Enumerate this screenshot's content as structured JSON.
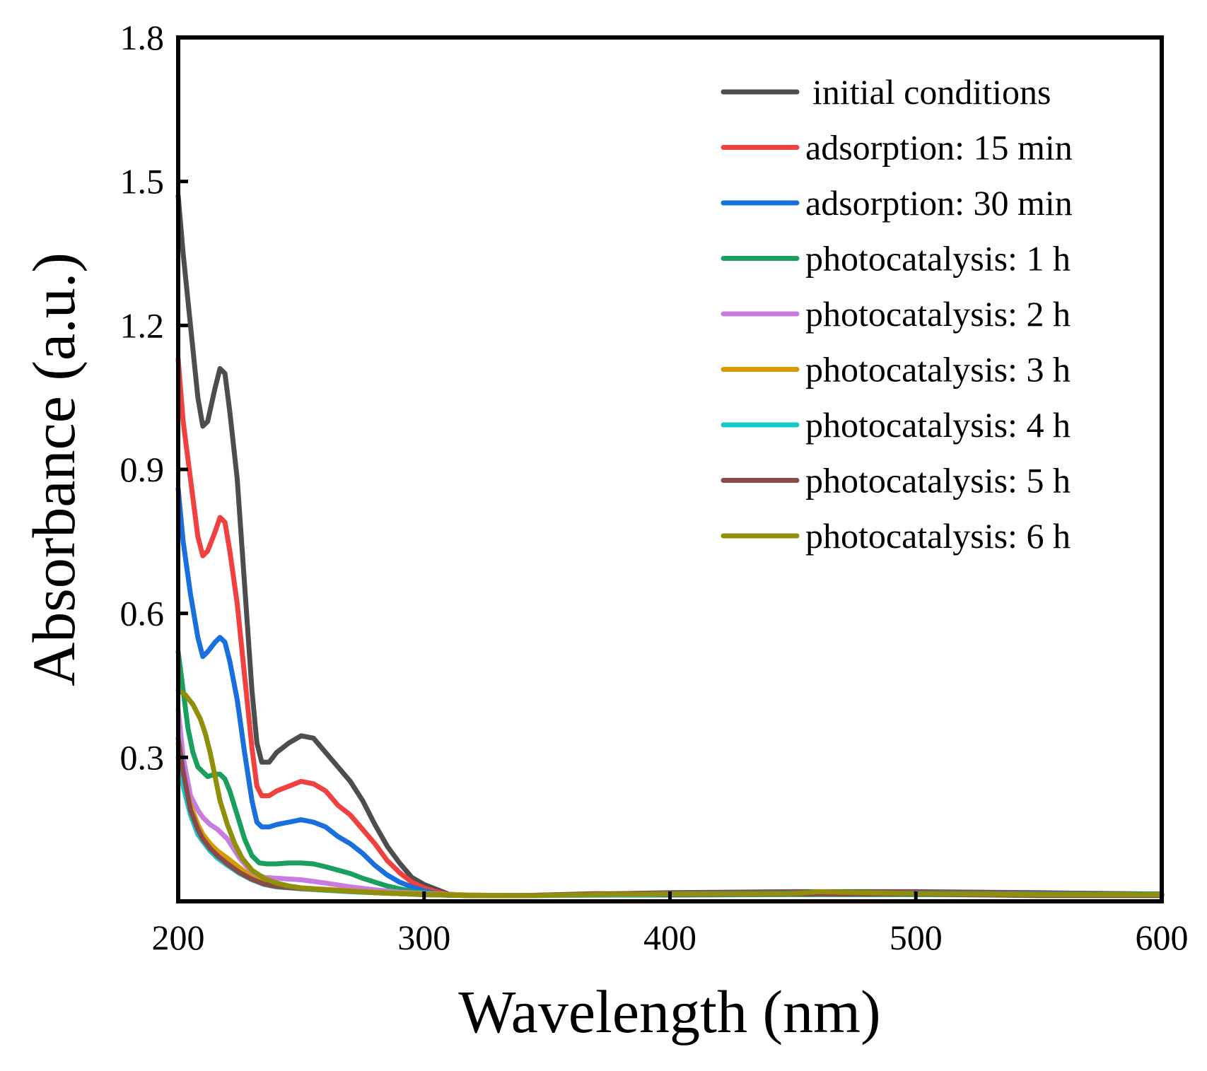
{
  "chart_data": {
    "type": "line",
    "title": "",
    "xlabel": "Wavelength (nm)",
    "ylabel": "Absorbance (a.u.)",
    "xlim": [
      200,
      600
    ],
    "ylim": [
      0,
      1.8
    ],
    "xticks": [
      200,
      300,
      400,
      500,
      600
    ],
    "xtick_labels": [
      "200",
      "300",
      "400",
      "500",
      "600"
    ],
    "yticks": [
      0.3,
      0.6,
      0.9,
      1.2,
      1.5,
      1.8
    ],
    "ytick_labels": [
      "0.3",
      "0.6",
      "0.9",
      "1.2",
      "1.5",
      "1.8"
    ],
    "grid": false,
    "legend_position": "top-right",
    "series": [
      {
        "name": "initial conditions",
        "color": "#4d4d4d",
        "x": [
          200,
          202,
          205,
          208,
          210,
          212,
          215,
          217,
          219,
          221,
          224,
          227,
          230,
          232,
          234,
          237,
          240,
          245,
          250,
          255,
          260,
          265,
          270,
          275,
          280,
          285,
          290,
          295,
          300,
          305,
          310,
          320,
          340,
          370,
          400,
          450,
          500,
          550,
          600
        ],
        "y": [
          1.47,
          1.35,
          1.2,
          1.05,
          0.99,
          1.0,
          1.07,
          1.11,
          1.1,
          1.02,
          0.88,
          0.66,
          0.44,
          0.33,
          0.29,
          0.29,
          0.31,
          0.33,
          0.345,
          0.34,
          0.31,
          0.28,
          0.25,
          0.21,
          0.16,
          0.115,
          0.08,
          0.05,
          0.035,
          0.025,
          0.015,
          0.012,
          0.012,
          0.015,
          0.018,
          0.02,
          0.02,
          0.018,
          0.015
        ]
      },
      {
        "name": "adsorption: 15 min",
        "color": "#f04040",
        "x": [
          200,
          202,
          205,
          208,
          210,
          212,
          215,
          217,
          219,
          221,
          224,
          227,
          230,
          232,
          234,
          237,
          240,
          245,
          250,
          255,
          260,
          265,
          270,
          275,
          280,
          285,
          290,
          295,
          300,
          305,
          310,
          320,
          340,
          370,
          400,
          450,
          500,
          550,
          600
        ],
        "y": [
          1.13,
          1.0,
          0.88,
          0.76,
          0.72,
          0.73,
          0.77,
          0.8,
          0.79,
          0.73,
          0.62,
          0.47,
          0.32,
          0.24,
          0.22,
          0.22,
          0.23,
          0.24,
          0.25,
          0.245,
          0.23,
          0.2,
          0.18,
          0.15,
          0.12,
          0.085,
          0.06,
          0.04,
          0.028,
          0.02,
          0.014,
          0.012,
          0.012,
          0.015,
          0.017,
          0.018,
          0.018,
          0.017,
          0.015
        ]
      },
      {
        "name": "adsorption: 30 min",
        "color": "#1a6fdf",
        "x": [
          200,
          202,
          205,
          208,
          210,
          212,
          215,
          217,
          219,
          221,
          224,
          227,
          230,
          232,
          234,
          237,
          240,
          245,
          250,
          255,
          260,
          265,
          270,
          275,
          280,
          285,
          290,
          295,
          300,
          305,
          310,
          320,
          340,
          370,
          400,
          450,
          500,
          550,
          600
        ],
        "y": [
          0.86,
          0.75,
          0.64,
          0.55,
          0.51,
          0.52,
          0.54,
          0.55,
          0.54,
          0.5,
          0.42,
          0.31,
          0.21,
          0.165,
          0.155,
          0.155,
          0.16,
          0.165,
          0.17,
          0.165,
          0.155,
          0.135,
          0.12,
          0.1,
          0.075,
          0.055,
          0.04,
          0.03,
          0.022,
          0.016,
          0.013,
          0.012,
          0.012,
          0.014,
          0.016,
          0.017,
          0.017,
          0.016,
          0.015
        ]
      },
      {
        "name": "photocatalysis: 1 h",
        "color": "#1a9f5f",
        "x": [
          200,
          202,
          204,
          206,
          208,
          210,
          212,
          215,
          217,
          219,
          221,
          224,
          227,
          230,
          233,
          236,
          240,
          245,
          250,
          255,
          260,
          265,
          270,
          275,
          280,
          285,
          290,
          295,
          300,
          310,
          320,
          340,
          370,
          400,
          450,
          500,
          550,
          600
        ],
        "y": [
          0.52,
          0.44,
          0.36,
          0.31,
          0.28,
          0.27,
          0.26,
          0.265,
          0.265,
          0.255,
          0.23,
          0.18,
          0.13,
          0.095,
          0.08,
          0.078,
          0.078,
          0.08,
          0.08,
          0.078,
          0.072,
          0.065,
          0.058,
          0.048,
          0.04,
          0.032,
          0.026,
          0.021,
          0.018,
          0.014,
          0.012,
          0.012,
          0.014,
          0.015,
          0.016,
          0.016,
          0.015,
          0.015
        ]
      },
      {
        "name": "photocatalysis: 2 h",
        "color": "#c77ce0",
        "x": [
          200,
          202,
          205,
          208,
          210,
          213,
          216,
          220,
          225,
          230,
          235,
          240,
          250,
          260,
          270,
          280,
          290,
          300,
          320,
          340,
          370,
          400,
          450,
          500,
          550,
          600
        ],
        "y": [
          0.4,
          0.3,
          0.22,
          0.19,
          0.175,
          0.16,
          0.15,
          0.13,
          0.09,
          0.06,
          0.05,
          0.048,
          0.045,
          0.038,
          0.03,
          0.024,
          0.019,
          0.016,
          0.013,
          0.012,
          0.013,
          0.014,
          0.015,
          0.015,
          0.014,
          0.014
        ]
      },
      {
        "name": "photocatalysis: 3 h",
        "color": "#d89a00",
        "x": [
          200,
          202,
          205,
          208,
          210,
          213,
          216,
          220,
          225,
          230,
          235,
          240,
          250,
          260,
          270,
          280,
          290,
          300,
          320,
          340,
          370,
          400,
          450,
          500,
          550,
          600
        ],
        "y": [
          0.33,
          0.26,
          0.2,
          0.16,
          0.14,
          0.12,
          0.105,
          0.09,
          0.07,
          0.05,
          0.038,
          0.032,
          0.028,
          0.025,
          0.022,
          0.019,
          0.017,
          0.015,
          0.013,
          0.012,
          0.013,
          0.014,
          0.015,
          0.015,
          0.014,
          0.014
        ]
      },
      {
        "name": "photocatalysis: 4 h",
        "color": "#18c8c8",
        "x": [
          200,
          202,
          205,
          208,
          210,
          213,
          216,
          220,
          225,
          230,
          235,
          240,
          250,
          260,
          270,
          280,
          290,
          300,
          320,
          340,
          370,
          400,
          450,
          500,
          550,
          600
        ],
        "y": [
          0.3,
          0.24,
          0.18,
          0.14,
          0.125,
          0.105,
          0.09,
          0.075,
          0.058,
          0.045,
          0.035,
          0.03,
          0.026,
          0.023,
          0.02,
          0.018,
          0.016,
          0.014,
          0.012,
          0.012,
          0.013,
          0.013,
          0.014,
          0.014,
          0.013,
          0.013
        ]
      },
      {
        "name": "photocatalysis: 5 h",
        "color": "#8b4a4a",
        "x": [
          200,
          202,
          205,
          208,
          210,
          213,
          216,
          220,
          225,
          230,
          235,
          240,
          250,
          260,
          270,
          280,
          290,
          300,
          320,
          340,
          370,
          400,
          450,
          500,
          550,
          600
        ],
        "y": [
          0.34,
          0.27,
          0.19,
          0.15,
          0.13,
          0.11,
          0.095,
          0.078,
          0.06,
          0.046,
          0.036,
          0.031,
          0.027,
          0.024,
          0.021,
          0.018,
          0.016,
          0.014,
          0.012,
          0.012,
          0.016,
          0.014,
          0.015,
          0.015,
          0.012,
          0.012
        ]
      },
      {
        "name": "photocatalysis: 6 h",
        "color": "#8f8f0a",
        "x": [
          200,
          203,
          206,
          209,
          211,
          213,
          215,
          217,
          220,
          223,
          226,
          230,
          235,
          240,
          245,
          250,
          260,
          270,
          280,
          290,
          300,
          320,
          340,
          370,
          400,
          450,
          460,
          500,
          550,
          600
        ],
        "y": [
          0.44,
          0.43,
          0.41,
          0.38,
          0.35,
          0.31,
          0.26,
          0.21,
          0.16,
          0.12,
          0.09,
          0.065,
          0.048,
          0.038,
          0.032,
          0.028,
          0.024,
          0.021,
          0.018,
          0.016,
          0.014,
          0.012,
          0.012,
          0.014,
          0.015,
          0.016,
          0.02,
          0.016,
          0.014,
          0.014
        ]
      }
    ]
  }
}
